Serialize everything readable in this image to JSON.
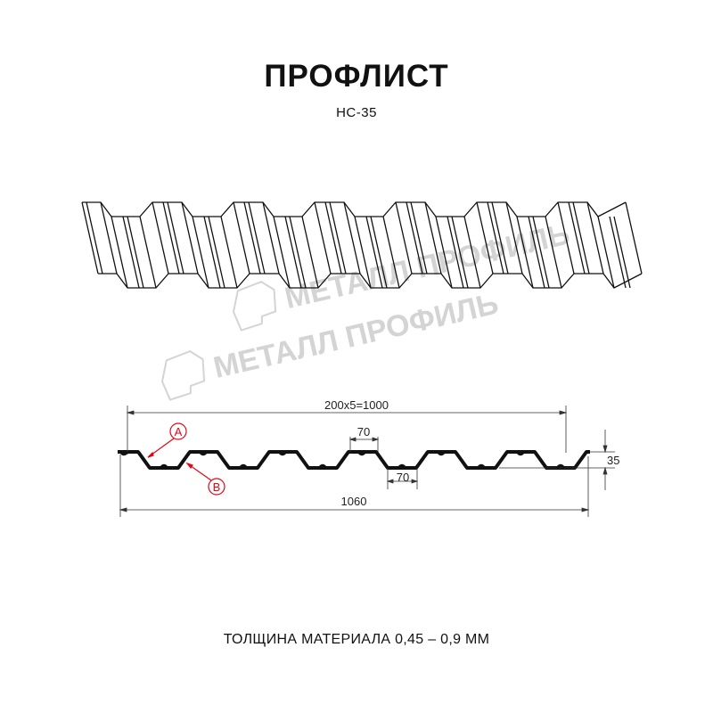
{
  "header": {
    "title": "ПРОФЛИСТ",
    "model": "НС-35"
  },
  "watermark": {
    "text": "МЕТАЛЛ ПРОФИЛЬ"
  },
  "drawing": {
    "dim_pitch_total": "200x5=1000",
    "dim_total_width": "1060",
    "dim_height": "35",
    "dim_top_flange": "70",
    "dim_bottom_flange": "70",
    "label_a": "A",
    "label_b": "B",
    "accent_color": "#e30613",
    "line_color": "#111111"
  },
  "footer": {
    "thickness": "ТОЛЩИНА МАТЕРИАЛА 0,45 – 0,9 ММ"
  }
}
